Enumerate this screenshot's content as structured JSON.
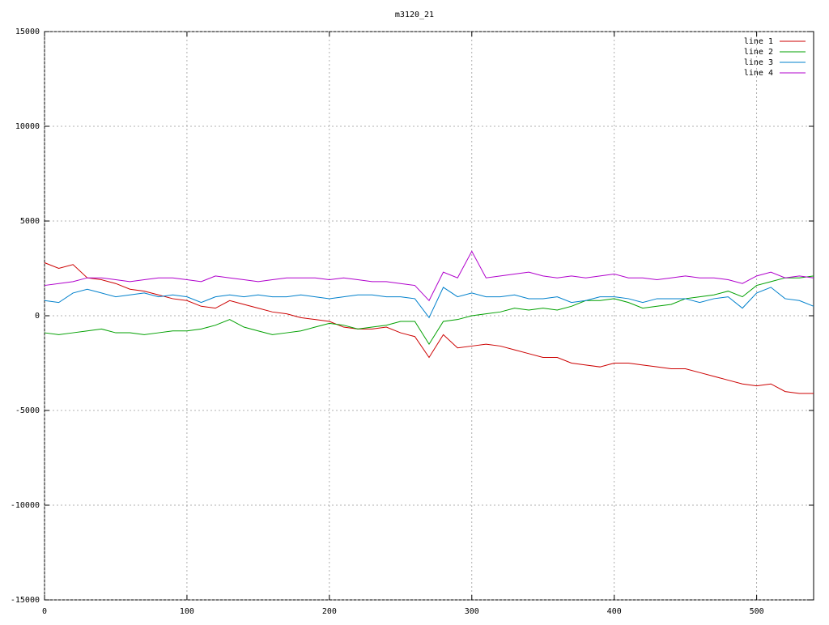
{
  "chart_data": {
    "type": "line",
    "title": "m3120_21",
    "x": [
      0,
      10,
      20,
      30,
      40,
      50,
      60,
      70,
      80,
      90,
      100,
      110,
      120,
      130,
      140,
      150,
      160,
      170,
      180,
      190,
      200,
      210,
      220,
      230,
      240,
      250,
      260,
      270,
      280,
      290,
      300,
      310,
      320,
      330,
      340,
      350,
      360,
      370,
      380,
      390,
      400,
      410,
      420,
      430,
      440,
      450,
      460,
      470,
      480,
      490,
      500,
      510,
      520,
      530,
      540
    ],
    "series": [
      {
        "name": "line 1",
        "color": "#cc0000",
        "values": [
          2800,
          2500,
          2700,
          2000,
          1900,
          1700,
          1400,
          1300,
          1100,
          900,
          800,
          500,
          400,
          800,
          600,
          400,
          200,
          100,
          -100,
          -200,
          -300,
          -600,
          -700,
          -700,
          -600,
          -900,
          -1100,
          -2200,
          -1000,
          -1700,
          -1600,
          -1500,
          -1600,
          -1800,
          -2000,
          -2200,
          -2200,
          -2500,
          -2600,
          -2700,
          -2500,
          -2500,
          -2600,
          -2700,
          -2800,
          -2800,
          -3000,
          -3200,
          -3400,
          -3600,
          -3700,
          -3600,
          -4000,
          -4100,
          -4100
        ]
      },
      {
        "name": "line 2",
        "color": "#00a000",
        "values": [
          -900,
          -1000,
          -900,
          -800,
          -700,
          -900,
          -900,
          -1000,
          -900,
          -800,
          -800,
          -700,
          -500,
          -200,
          -600,
          -800,
          -1000,
          -900,
          -800,
          -600,
          -400,
          -500,
          -700,
          -600,
          -500,
          -300,
          -300,
          -1500,
          -300,
          -200,
          0,
          100,
          200,
          400,
          300,
          400,
          300,
          500,
          800,
          800,
          900,
          700,
          400,
          500,
          600,
          900,
          1000,
          1100,
          1300,
          1000,
          1600,
          1800,
          2000,
          2000,
          2100
        ]
      },
      {
        "name": "line 3",
        "color": "#0080cc",
        "values": [
          800,
          700,
          1200,
          1400,
          1200,
          1000,
          1100,
          1200,
          1000,
          1100,
          1000,
          700,
          1000,
          1100,
          1000,
          1100,
          1000,
          1000,
          1100,
          1000,
          900,
          1000,
          1100,
          1100,
          1000,
          1000,
          900,
          -100,
          1500,
          1000,
          1200,
          1000,
          1000,
          1100,
          900,
          900,
          1000,
          700,
          800,
          1000,
          1000,
          900,
          700,
          900,
          900,
          900,
          700,
          900,
          1000,
          400,
          1200,
          1500,
          900,
          800,
          500
        ]
      },
      {
        "name": "line 4",
        "color": "#b000cc",
        "values": [
          1600,
          1700,
          1800,
          2000,
          2000,
          1900,
          1800,
          1900,
          2000,
          2000,
          1900,
          1800,
          2100,
          2000,
          1900,
          1800,
          1900,
          2000,
          2000,
          2000,
          1900,
          2000,
          1900,
          1800,
          1800,
          1700,
          1600,
          800,
          2300,
          2000,
          3400,
          2000,
          2100,
          2200,
          2300,
          2100,
          2000,
          2100,
          2000,
          2100,
          2200,
          2000,
          2000,
          1900,
          2000,
          2100,
          2000,
          2000,
          1900,
          1700,
          2100,
          2300,
          2000,
          2100,
          2000
        ]
      }
    ],
    "xlim": [
      0,
      540
    ],
    "xticks": [
      0,
      100,
      200,
      300,
      400,
      500
    ],
    "ylim": [
      -15000,
      15000
    ],
    "yticks": [
      -15000,
      -10000,
      -5000,
      0,
      5000,
      10000,
      15000
    ],
    "grid": true,
    "legend": "top-right"
  }
}
